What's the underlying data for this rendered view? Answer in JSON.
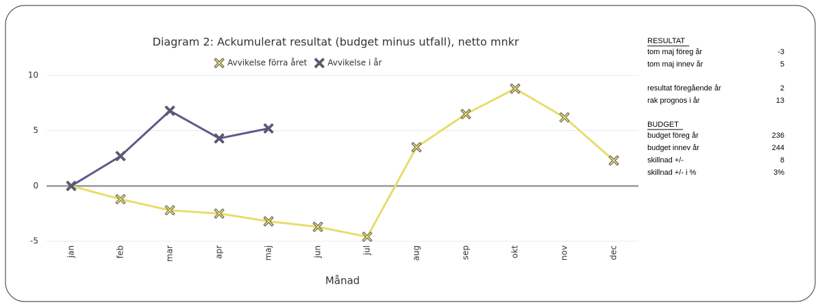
{
  "chart_data": {
    "type": "line",
    "title": "Diagram 2: Ackumulerat resultat (budget minus utfall), netto mnkr",
    "x_label": "Månad",
    "categories": [
      "jan",
      "feb",
      "mar",
      "apr",
      "maj",
      "jun",
      "jul",
      "aug",
      "sep",
      "okt",
      "nov",
      "dec"
    ],
    "series": [
      {
        "name": "Avvikelse förra året",
        "color": "#e8dc6a",
        "values": [
          0,
          -1.2,
          -2.2,
          -2.5,
          -3.2,
          -3.7,
          -4.6,
          3.5,
          6.5,
          8.8,
          6.2,
          2.3
        ]
      },
      {
        "name": "Avvikelse i år",
        "color": "#5a5a8c",
        "values": [
          0,
          2.7,
          6.8,
          4.3,
          5.2,
          null,
          null,
          null,
          null,
          null,
          null,
          null
        ]
      }
    ],
    "ylim": [
      -5,
      10
    ],
    "yticks": [
      -5,
      0,
      5,
      10
    ],
    "grid": true
  },
  "side_panel": {
    "sections": [
      {
        "heading": "RESULTAT",
        "rows": [
          [
            "tom  maj föreg år",
            -3
          ],
          [
            "tom  maj innev år",
            5
          ]
        ]
      },
      {
        "heading": null,
        "rows": [
          [
            "resultat föregående år",
            2
          ],
          [
            "rak prognos i år",
            13
          ]
        ]
      },
      {
        "heading": "BUDGET",
        "rows": [
          [
            "budget föreg år",
            236
          ],
          [
            "budget innev år",
            244
          ],
          [
            "skillnad +/-",
            8
          ],
          [
            "skillnad +/- i %",
            "3%"
          ]
        ]
      }
    ]
  }
}
